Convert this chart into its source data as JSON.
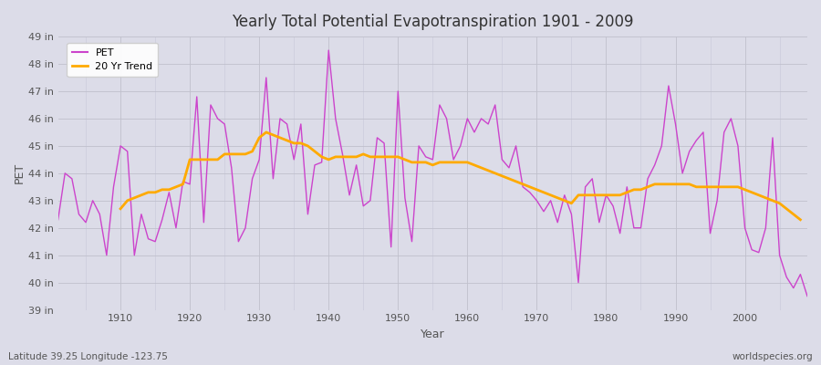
{
  "title": "Yearly Total Potential Evapotranspiration 1901 - 2009",
  "xlabel": "Year",
  "ylabel": "PET",
  "footnote_left": "Latitude 39.25 Longitude -123.75",
  "footnote_right": "worldspecies.org",
  "pet_color": "#cc44cc",
  "trend_color": "#ffaa00",
  "bg_color": "#dcdce8",
  "plot_bg_color": "#dcdce8",
  "ylim_min": 39,
  "ylim_max": 49,
  "years": [
    1901,
    1902,
    1903,
    1904,
    1905,
    1906,
    1907,
    1908,
    1909,
    1910,
    1911,
    1912,
    1913,
    1914,
    1915,
    1916,
    1917,
    1918,
    1919,
    1920,
    1921,
    1922,
    1923,
    1924,
    1925,
    1926,
    1927,
    1928,
    1929,
    1930,
    1931,
    1932,
    1933,
    1934,
    1935,
    1936,
    1937,
    1938,
    1939,
    1940,
    1941,
    1942,
    1943,
    1944,
    1945,
    1946,
    1947,
    1948,
    1949,
    1950,
    1951,
    1952,
    1953,
    1954,
    1955,
    1956,
    1957,
    1958,
    1959,
    1960,
    1961,
    1962,
    1963,
    1964,
    1965,
    1966,
    1967,
    1968,
    1969,
    1970,
    1971,
    1972,
    1973,
    1974,
    1975,
    1976,
    1977,
    1978,
    1979,
    1980,
    1981,
    1982,
    1983,
    1984,
    1985,
    1986,
    1987,
    1988,
    1989,
    1990,
    1991,
    1992,
    1993,
    1994,
    1995,
    1996,
    1997,
    1998,
    1999,
    2000,
    2001,
    2002,
    2003,
    2004,
    2005,
    2006,
    2007,
    2008,
    2009
  ],
  "pet_values": [
    42.3,
    44.0,
    43.8,
    42.5,
    42.2,
    43.0,
    42.5,
    41.0,
    43.5,
    45.0,
    44.8,
    41.0,
    42.5,
    41.6,
    41.5,
    42.3,
    43.3,
    42.0,
    43.7,
    43.6,
    46.8,
    42.2,
    46.5,
    46.0,
    45.8,
    44.2,
    41.5,
    42.0,
    43.8,
    44.5,
    47.5,
    43.8,
    46.0,
    45.8,
    44.5,
    45.8,
    42.5,
    44.3,
    44.4,
    48.5,
    46.0,
    44.7,
    43.2,
    44.3,
    42.8,
    43.0,
    45.3,
    45.1,
    41.3,
    47.0,
    43.1,
    41.5,
    45.0,
    44.6,
    44.5,
    46.5,
    46.0,
    44.5,
    45.0,
    46.0,
    45.5,
    46.0,
    45.8,
    46.5,
    44.5,
    44.2,
    45.0,
    43.5,
    43.3,
    43.0,
    42.6,
    43.0,
    42.2,
    43.2,
    42.5,
    40.0,
    43.5,
    43.8,
    42.2,
    43.2,
    42.8,
    41.8,
    43.5,
    42.0,
    42.0,
    43.8,
    44.3,
    45.0,
    47.2,
    45.8,
    44.0,
    44.8,
    45.2,
    45.5,
    41.8,
    43.0,
    45.5,
    46.0,
    45.0,
    42.0,
    41.2,
    41.1,
    42.0,
    45.3,
    41.0,
    40.2,
    39.8,
    40.3,
    39.5
  ],
  "trend_values": [
    null,
    null,
    null,
    null,
    null,
    null,
    null,
    null,
    null,
    42.7,
    43.0,
    43.1,
    43.2,
    43.3,
    43.3,
    43.4,
    43.4,
    43.5,
    43.6,
    44.5,
    44.5,
    44.5,
    44.5,
    44.5,
    44.7,
    44.7,
    44.7,
    44.7,
    44.8,
    45.3,
    45.5,
    45.4,
    45.3,
    45.2,
    45.1,
    45.1,
    45.0,
    44.8,
    44.6,
    44.5,
    44.6,
    44.6,
    44.6,
    44.6,
    44.7,
    44.6,
    44.6,
    44.6,
    44.6,
    44.6,
    44.5,
    44.4,
    44.4,
    44.4,
    44.3,
    44.4,
    44.4,
    44.4,
    44.4,
    44.4,
    44.3,
    44.2,
    44.1,
    44.0,
    43.9,
    43.8,
    43.7,
    43.6,
    43.5,
    43.4,
    43.3,
    43.2,
    43.1,
    43.0,
    42.9,
    43.2,
    43.2,
    43.2,
    43.2,
    43.2,
    43.2,
    43.2,
    43.3,
    43.4,
    43.4,
    43.5,
    43.6,
    43.6,
    43.6,
    43.6,
    43.6,
    43.6,
    43.5,
    43.5,
    43.5,
    43.5,
    43.5,
    43.5,
    43.5,
    43.4,
    43.3,
    43.2,
    43.1,
    43.0,
    42.9,
    42.7,
    42.5,
    42.3,
    null
  ]
}
